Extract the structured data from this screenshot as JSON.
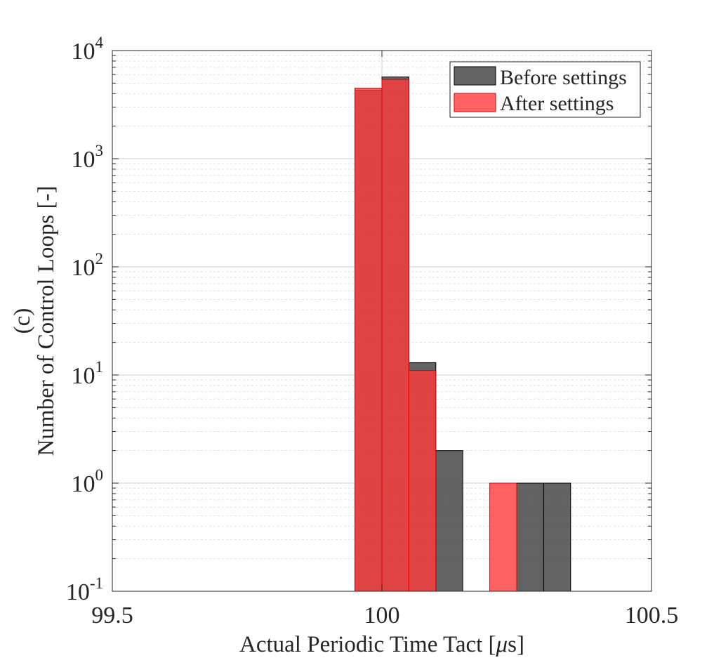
{
  "chart_data": {
    "type": "histogram",
    "panel_label": "(c)",
    "xlabel": "Actual Periodic Time Tact [",
    "xlabel_unit_symbol": "μ",
    "xlabel_unit_suffix": "s]",
    "ylabel": "Number of Control Loops [-]",
    "yscale": "log",
    "xlim": [
      99.5,
      100.5
    ],
    "ylim": [
      0.1,
      10000
    ],
    "xticks": [
      {
        "value": 99.5,
        "label": "99.5"
      },
      {
        "value": 100,
        "label": "100"
      },
      {
        "value": 100.5,
        "label": "100.5"
      }
    ],
    "yticks": [
      {
        "value": 0.1,
        "base": "10",
        "exp": "-1"
      },
      {
        "value": 1,
        "base": "10",
        "exp": "0"
      },
      {
        "value": 10,
        "base": "10",
        "exp": "1"
      },
      {
        "value": 100,
        "base": "10",
        "exp": "2"
      },
      {
        "value": 1000,
        "base": "10",
        "exp": "3"
      },
      {
        "value": 10000,
        "base": "10",
        "exp": "4"
      }
    ],
    "grid": true,
    "legend_position": "top-right",
    "series": [
      {
        "name": "Before settings",
        "color": "#525252",
        "opacity": 0.9,
        "bins": [
          {
            "x0": 99.95,
            "x1": 100.0,
            "count": 4300
          },
          {
            "x0": 100.0,
            "x1": 100.05,
            "count": 5700
          },
          {
            "x0": 100.05,
            "x1": 100.1,
            "count": 13
          },
          {
            "x0": 100.1,
            "x1": 100.15,
            "count": 2
          },
          {
            "x0": 100.25,
            "x1": 100.3,
            "count": 1
          },
          {
            "x0": 100.3,
            "x1": 100.35,
            "count": 1
          }
        ]
      },
      {
        "name": "After settings",
        "color": "#ff3b3b",
        "opacity": 0.8,
        "bins": [
          {
            "x0": 99.95,
            "x1": 100.0,
            "count": 4500
          },
          {
            "x0": 100.0,
            "x1": 100.05,
            "count": 5400
          },
          {
            "x0": 100.05,
            "x1": 100.1,
            "count": 11
          },
          {
            "x0": 100.2,
            "x1": 100.25,
            "count": 1
          }
        ]
      }
    ]
  }
}
